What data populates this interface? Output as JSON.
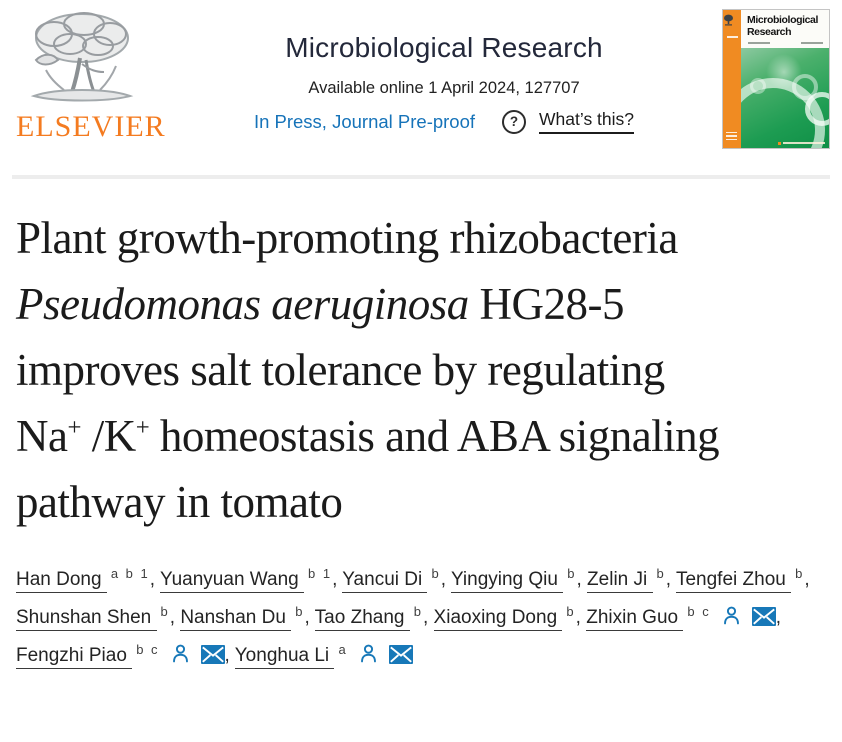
{
  "header": {
    "brand": "ELSEVIER",
    "journal_title": "Microbiological Research",
    "availability": "Available online 1 April 2024, 127707",
    "status_link": "In Press, Journal Pre-proof",
    "help_icon_glyph": "?",
    "help_label": "What’s this?"
  },
  "cover": {
    "title": "Microbiological Research"
  },
  "article": {
    "title_segments": [
      {
        "text": "Plant growth-promoting rhizobacteria "
      },
      {
        "text": "Pseudomonas aeruginosa",
        "style": "italic"
      },
      {
        "text": " HG28-5 improves salt tolerance by regulating Na"
      },
      {
        "text": "+",
        "style": "sup"
      },
      {
        "text": " /K"
      },
      {
        "text": "+",
        "style": "sup"
      },
      {
        "text": " homeostasis and ABA signaling pathway in tomato"
      }
    ]
  },
  "authors": {
    "separator": ", ",
    "list": [
      {
        "name": "Han Dong",
        "affiliations": "a b 1",
        "has_profile_icon": false,
        "has_email_icon": false
      },
      {
        "name": "Yuanyuan Wang",
        "affiliations": "b 1",
        "has_profile_icon": false,
        "has_email_icon": false
      },
      {
        "name": "Yancui Di",
        "affiliations": "b",
        "has_profile_icon": false,
        "has_email_icon": false
      },
      {
        "name": "Yingying Qiu",
        "affiliations": "b",
        "has_profile_icon": false,
        "has_email_icon": false
      },
      {
        "name": "Zelin Ji",
        "affiliations": "b",
        "has_profile_icon": false,
        "has_email_icon": false
      },
      {
        "name": "Tengfei Zhou",
        "affiliations": "b",
        "has_profile_icon": false,
        "has_email_icon": false
      },
      {
        "name": "Shunshan Shen",
        "affiliations": "b",
        "has_profile_icon": false,
        "has_email_icon": false
      },
      {
        "name": "Nanshan Du",
        "affiliations": "b",
        "has_profile_icon": false,
        "has_email_icon": false
      },
      {
        "name": "Tao Zhang",
        "affiliations": "b",
        "has_profile_icon": false,
        "has_email_icon": false
      },
      {
        "name": "Xiaoxing Dong",
        "affiliations": "b",
        "has_profile_icon": false,
        "has_email_icon": false
      },
      {
        "name": "Zhixin Guo",
        "affiliations": "b c",
        "has_profile_icon": true,
        "has_email_icon": true
      },
      {
        "name": "Fengzhi Piao",
        "affiliations": "b c",
        "has_profile_icon": true,
        "has_email_icon": true
      },
      {
        "name": "Yonghua Li",
        "affiliations": "a",
        "has_profile_icon": true,
        "has_email_icon": true
      }
    ]
  },
  "colors": {
    "link_blue": "#1673b9",
    "icon_blue": "#1778b8",
    "elsevier_orange": "#f47b20",
    "cover_strip_orange": "#f08b22",
    "cover_green": "#1d9c52",
    "title_text": "#1b1b1b",
    "journal_title_text": "#23283a",
    "divider_gray": "#ededed"
  }
}
